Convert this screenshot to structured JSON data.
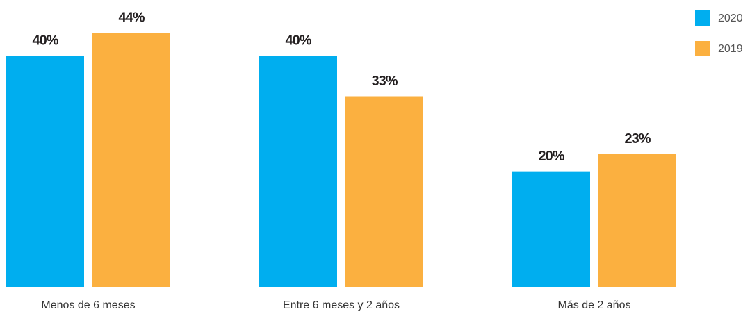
{
  "chart_data": {
    "type": "bar",
    "categories": [
      "Menos de 6 meses",
      "Entre 6 meses y 2 años",
      "Más de 2 años"
    ],
    "series": [
      {
        "name": "2020",
        "color": "#00aeef",
        "values": [
          40,
          40,
          20
        ],
        "value_labels": [
          "40%",
          "40%",
          "20%"
        ]
      },
      {
        "name": "2019",
        "color": "#fbb040",
        "values": [
          44,
          33,
          23
        ],
        "value_labels": [
          "44%",
          "33%",
          "23%"
        ]
      }
    ]
  }
}
